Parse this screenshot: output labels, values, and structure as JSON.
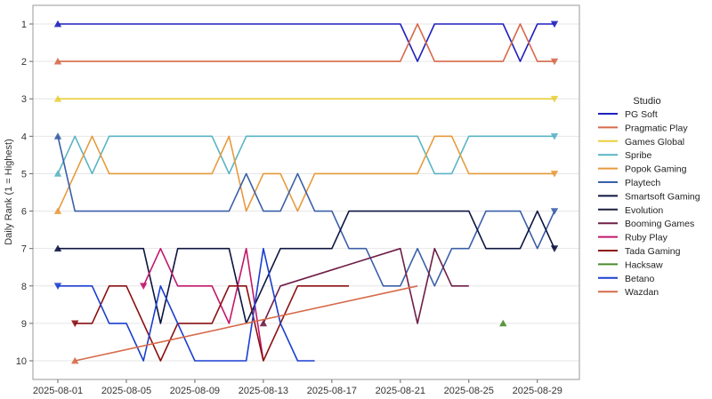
{
  "chart_data": {
    "type": "line",
    "title": "",
    "xlabel": "",
    "ylabel": "Daily Rank (1 = Highest)",
    "y_axis_inverted": true,
    "ylim": [
      10,
      1
    ],
    "xlim": [
      "2025-08-01",
      "2025-08-30"
    ],
    "grid": "horizontal",
    "legend_title": "Studio",
    "legend_placement": "right",
    "x_tick_labels": [
      "2025-08-01",
      "2025-08-05",
      "2025-08-09",
      "2025-08-13",
      "2025-08-17",
      "2025-08-21",
      "2025-08-25",
      "2025-08-29"
    ],
    "y_tick_labels": [
      "1",
      "2",
      "3",
      "4",
      "5",
      "6",
      "7",
      "8",
      "9",
      "10"
    ],
    "series": [
      {
        "name": "PG Soft",
        "color": "#1f1fbf",
        "marker": "triangle-up",
        "points": [
          [
            "2025-08-01",
            1
          ],
          [
            "2025-08-21",
            1
          ],
          [
            "2025-08-22",
            2
          ],
          [
            "2025-08-23",
            1
          ],
          [
            "2025-08-27",
            1
          ],
          [
            "2025-08-28",
            2
          ],
          [
            "2025-08-29",
            1
          ],
          [
            "2025-08-30",
            1
          ]
        ]
      },
      {
        "name": "Pragmatic Play",
        "color": "#d66a4a",
        "marker": "triangle-up",
        "points": [
          [
            "2025-08-01",
            2
          ],
          [
            "2025-08-21",
            2
          ],
          [
            "2025-08-22",
            1
          ],
          [
            "2025-08-23",
            2
          ],
          [
            "2025-08-27",
            2
          ],
          [
            "2025-08-28",
            1
          ],
          [
            "2025-08-29",
            2
          ],
          [
            "2025-08-30",
            2
          ]
        ]
      },
      {
        "name": "Games Global",
        "color": "#e8cf3a",
        "marker": "triangle-up",
        "points": [
          [
            "2025-08-01",
            3
          ],
          [
            "2025-08-30",
            3
          ]
        ]
      },
      {
        "name": "Spribe",
        "color": "#5ab4c4",
        "marker": "triangle-up",
        "points": [
          [
            "2025-08-01",
            5
          ],
          [
            "2025-08-02",
            4
          ],
          [
            "2025-08-03",
            5
          ],
          [
            "2025-08-04",
            4
          ],
          [
            "2025-08-10",
            4
          ],
          [
            "2025-08-11",
            5
          ],
          [
            "2025-08-12",
            4
          ],
          [
            "2025-08-22",
            4
          ],
          [
            "2025-08-23",
            5
          ],
          [
            "2025-08-24",
            5
          ],
          [
            "2025-08-25",
            4
          ],
          [
            "2025-08-30",
            4
          ]
        ]
      },
      {
        "name": "Popok Gaming",
        "color": "#e89a3c",
        "marker": "triangle-up",
        "points": [
          [
            "2025-08-01",
            6
          ],
          [
            "2025-08-03",
            4
          ],
          [
            "2025-08-04",
            5
          ],
          [
            "2025-08-10",
            5
          ],
          [
            "2025-08-11",
            4
          ],
          [
            "2025-08-12",
            6
          ],
          [
            "2025-08-13",
            5
          ],
          [
            "2025-08-14",
            5
          ],
          [
            "2025-08-15",
            6
          ],
          [
            "2025-08-16",
            5
          ],
          [
            "2025-08-22",
            5
          ],
          [
            "2025-08-23",
            4
          ],
          [
            "2025-08-24",
            4
          ],
          [
            "2025-08-25",
            5
          ],
          [
            "2025-08-30",
            5
          ]
        ]
      },
      {
        "name": "Playtech",
        "color": "#3a5fa8",
        "marker": "triangle-up",
        "points": [
          [
            "2025-08-01",
            4
          ],
          [
            "2025-08-02",
            6
          ],
          [
            "2025-08-11",
            6
          ],
          [
            "2025-08-12",
            5
          ],
          [
            "2025-08-13",
            6
          ],
          [
            "2025-08-14",
            6
          ],
          [
            "2025-08-15",
            5
          ],
          [
            "2025-08-16",
            6
          ],
          [
            "2025-08-17",
            6
          ],
          [
            "2025-08-18",
            7
          ],
          [
            "2025-08-19",
            7
          ],
          [
            "2025-08-20",
            8
          ],
          [
            "2025-08-21",
            8
          ],
          [
            "2025-08-22",
            7
          ],
          [
            "2025-08-23",
            8
          ],
          [
            "2025-08-24",
            7
          ],
          [
            "2025-08-25",
            7
          ],
          [
            "2025-08-26",
            6
          ],
          [
            "2025-08-28",
            6
          ],
          [
            "2025-08-29",
            7
          ],
          [
            "2025-08-30",
            6
          ]
        ]
      },
      {
        "name": "Smartsoft Gaming",
        "color": "#0d1540",
        "marker": "triangle-up",
        "points": [
          [
            "2025-08-01",
            7
          ],
          [
            "2025-08-06",
            7
          ],
          [
            "2025-08-07",
            9
          ],
          [
            "2025-08-08",
            7
          ],
          [
            "2025-08-11",
            7
          ],
          [
            "2025-08-12",
            9
          ],
          [
            "2025-08-13",
            8
          ],
          [
            "2025-08-14",
            7
          ],
          [
            "2025-08-17",
            7
          ],
          [
            "2025-08-18",
            6
          ],
          [
            "2025-08-25",
            6
          ],
          [
            "2025-08-26",
            7
          ],
          [
            "2025-08-28",
            7
          ],
          [
            "2025-08-29",
            6
          ],
          [
            "2025-08-30",
            7
          ]
        ]
      },
      {
        "name": "Evolution",
        "color": "#1e1e40",
        "marker": "triangle-up",
        "points": []
      },
      {
        "name": "Booming Games",
        "color": "#6e1e46",
        "marker": "triangle-up",
        "points": [
          [
            "2025-08-13",
            9
          ],
          [
            "2025-08-14",
            8
          ],
          [
            "2025-08-21",
            7
          ],
          [
            "2025-08-22",
            9
          ],
          [
            "2025-08-23",
            7
          ],
          [
            "2025-08-24",
            8
          ],
          [
            "2025-08-25",
            8
          ]
        ]
      },
      {
        "name": "Ruby Play",
        "color": "#c2186b",
        "marker": "triangle-down",
        "points": [
          [
            "2025-08-06",
            8
          ],
          [
            "2025-08-07",
            7
          ],
          [
            "2025-08-08",
            8
          ],
          [
            "2025-08-10",
            8
          ],
          [
            "2025-08-11",
            9
          ],
          [
            "2025-08-12",
            7
          ],
          [
            "2025-08-13",
            10
          ]
        ]
      },
      {
        "name": "Tada Gaming",
        "color": "#8b1010",
        "marker": "triangle-down",
        "points": [
          [
            "2025-08-02",
            9
          ],
          [
            "2025-08-03",
            9
          ],
          [
            "2025-08-04",
            8
          ],
          [
            "2025-08-05",
            8
          ],
          [
            "2025-08-07",
            10
          ],
          [
            "2025-08-08",
            9
          ],
          [
            "2025-08-10",
            9
          ],
          [
            "2025-08-11",
            8
          ],
          [
            "2025-08-12",
            8
          ],
          [
            "2025-08-13",
            10
          ],
          [
            "2025-08-14",
            9
          ],
          [
            "2025-08-15",
            8
          ],
          [
            "2025-08-18",
            8
          ]
        ]
      },
      {
        "name": "Hacksaw",
        "color": "#4a8c2a",
        "marker": "triangle-up",
        "points": [
          [
            "2025-08-27",
            9
          ]
        ]
      },
      {
        "name": "Betano",
        "color": "#1a3fd0",
        "marker": "triangle-down",
        "points": [
          [
            "2025-08-01",
            8
          ],
          [
            "2025-08-03",
            8
          ],
          [
            "2025-08-04",
            9
          ],
          [
            "2025-08-05",
            9
          ],
          [
            "2025-08-06",
            10
          ],
          [
            "2025-08-07",
            8
          ],
          [
            "2025-08-09",
            10
          ],
          [
            "2025-08-12",
            10
          ],
          [
            "2025-08-13",
            7
          ],
          [
            "2025-08-14",
            9
          ],
          [
            "2025-08-15",
            10
          ],
          [
            "2025-08-16",
            10
          ]
        ]
      },
      {
        "name": "Wazdan",
        "color": "#d66a4a",
        "marker": "triangle-up",
        "points": [
          [
            "2025-08-02",
            10
          ],
          [
            "2025-08-22",
            8
          ]
        ]
      }
    ]
  }
}
